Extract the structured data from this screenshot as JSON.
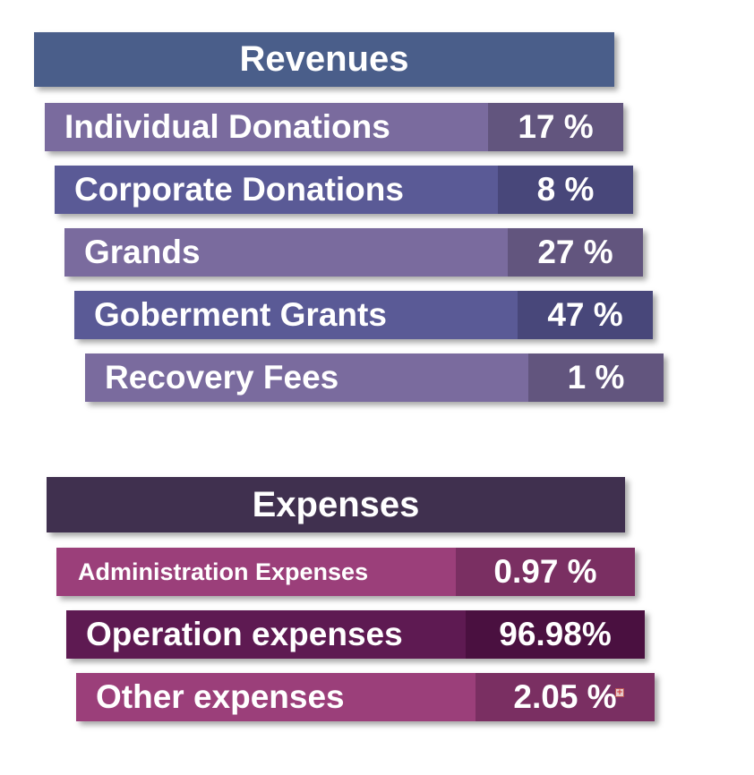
{
  "revenues": {
    "title": "Revenues",
    "rows": [
      {
        "label": "Individual Donations",
        "value": "17 %"
      },
      {
        "label": "Corporate Donations",
        "value": "8 %"
      },
      {
        "label": "Grands",
        "value": "27 %"
      },
      {
        "label": "Goberment Grants",
        "value": "47 %"
      },
      {
        "label": "Recovery Fees",
        "value": "1 %"
      }
    ]
  },
  "expenses": {
    "title": "Expenses",
    "rows": [
      {
        "label": "Administration Expenses",
        "value": "0.97 %"
      },
      {
        "label": "Operation expenses",
        "value": "96.98%"
      },
      {
        "label": "Other expenses",
        "value": "2.05 %"
      }
    ]
  },
  "colors": {
    "revenues_header": "#4a5e8a",
    "revenues_row_light": "#7a6b9e",
    "revenues_row_dark": "#5a5a96",
    "expenses_header": "#40304f",
    "expenses_row_light": "#9b3f7a",
    "expenses_row_dark": "#5e1a52"
  },
  "icons": {
    "corner_mark": "small-plus-icon"
  }
}
